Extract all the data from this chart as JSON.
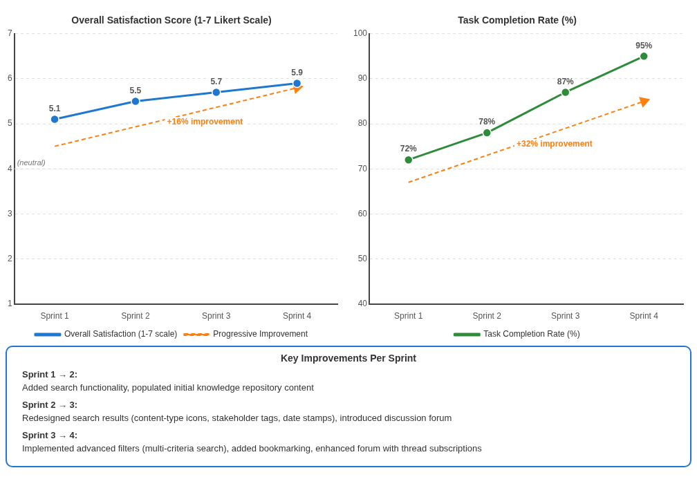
{
  "chart_data": [
    {
      "type": "line",
      "title": "Overall Satisfaction Score (1-7 Likert Scale)",
      "categories": [
        "Sprint 1",
        "Sprint 2",
        "Sprint 3",
        "Sprint 4"
      ],
      "ylim": [
        1,
        7
      ],
      "yticks": [
        1,
        2,
        3,
        4,
        5,
        6,
        7
      ],
      "grid": "y",
      "legend": "bottom",
      "marker": "circle",
      "series": [
        {
          "name": "Overall Satisfaction (1-7 scale)",
          "color": "#1f77d0",
          "values": [
            5.1,
            5.5,
            5.7,
            5.9
          ],
          "value_labels": [
            "5.1",
            "5.5",
            "5.7",
            "5.9"
          ]
        },
        {
          "name": "Progressive Improvement",
          "color": "#ff7f0e",
          "x": [
            "Sprint 1",
            "Sprint 4"
          ],
          "values": [
            4.5,
            5.8
          ],
          "line_style": "dashed",
          "marker": "triangle"
        }
      ],
      "ref_lines": [
        {
          "axis": "y",
          "value": 4,
          "label": "(neutral)"
        }
      ],
      "annotations": [
        "+16% improvement"
      ]
    },
    {
      "type": "line",
      "title": "Task Completion Rate (%)",
      "categories": [
        "Sprint 1",
        "Sprint 2",
        "Sprint 3",
        "Sprint 4"
      ],
      "ylim": [
        40,
        100
      ],
      "yticks": [
        40,
        50,
        60,
        70,
        80,
        90,
        100
      ],
      "grid": "y",
      "legend": "bottom",
      "marker": "circle",
      "series": [
        {
          "name": "Task Completion Rate (%)",
          "color": "#2e8b3a",
          "values": [
            72,
            78,
            87,
            95
          ],
          "value_labels": [
            "72%",
            "78%",
            "87%",
            "95%"
          ]
        },
        {
          "color": "#ff7f0e",
          "x": [
            "Sprint 1",
            "Sprint 4"
          ],
          "values": [
            67,
            85
          ],
          "line_style": "dashed",
          "marker": "triangle"
        }
      ],
      "annotations": [
        "+32% improvement"
      ]
    },
    {
      "type": "other",
      "title": "Key Improvements Per Sprint",
      "annotations": [
        "Sprint 1 → 2:",
        "Added search functionality, populated initial knowledge repository content",
        "Sprint 2 → 3:",
        "Redesigned search results (content-type icons, stakeholder tags, date stamps), introduced discussion forum",
        "Sprint 3 → 4:",
        "Implemented advanced filters (multi-criteria search), added bookmarking, enhanced forum with thread subscriptions"
      ]
    }
  ]
}
